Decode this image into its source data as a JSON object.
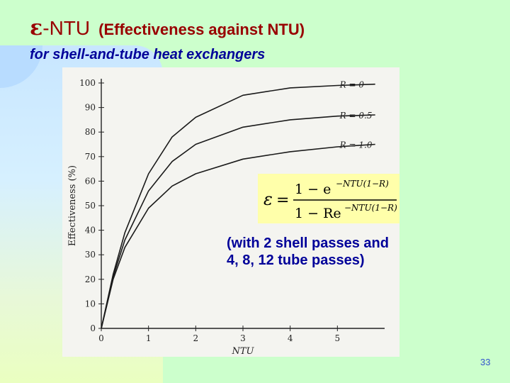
{
  "title": {
    "epsilon": "ε",
    "ntu": "-NTU",
    "sub": "(Effectiveness against NTU)"
  },
  "subtitle": "for shell-and-tube heat exchangers",
  "note": {
    "line1": "(with 2 shell passes and",
    "line2": "4, 8, 12 tube passes)"
  },
  "formula": {
    "lhs": "ε",
    "numerator": "1 − e",
    "denominator": "1 − Re",
    "exponent": "−NTU(1−R)"
  },
  "page_number": "33",
  "colors": {
    "background": "#ccffcc",
    "title": "#990000",
    "subtitle": "#000099",
    "formula_highlight": "#ffffaa"
  },
  "chart_data": {
    "type": "line",
    "title": "",
    "xlabel": "NTU",
    "ylabel": "Effectiveness (%)",
    "xlim": [
      0,
      6
    ],
    "ylim": [
      0,
      100
    ],
    "xticks": [
      "0",
      "1",
      "2",
      "3",
      "4",
      "5"
    ],
    "yticks": [
      "0",
      "10",
      "20",
      "30",
      "40",
      "50",
      "60",
      "70",
      "80",
      "90",
      "100"
    ],
    "series": [
      {
        "name": "R = 0",
        "x": [
          0,
          0.25,
          0.5,
          1,
          1.5,
          2,
          3,
          4,
          5,
          5.8
        ],
        "y": [
          0,
          22,
          39,
          63,
          78,
          86,
          95,
          98,
          99,
          99.5
        ]
      },
      {
        "name": "R = 0.5",
        "x": [
          0,
          0.25,
          0.5,
          1,
          1.5,
          2,
          3,
          4,
          5,
          5.8
        ],
        "y": [
          0,
          21,
          36,
          56,
          68,
          75,
          82,
          85,
          86.5,
          87
        ]
      },
      {
        "name": "R = 1.0",
        "x": [
          0,
          0.25,
          0.5,
          1,
          1.5,
          2,
          3,
          4,
          5,
          5.8
        ],
        "y": [
          0,
          20,
          33,
          49,
          58,
          63,
          69,
          72,
          74,
          75
        ]
      }
    ]
  }
}
